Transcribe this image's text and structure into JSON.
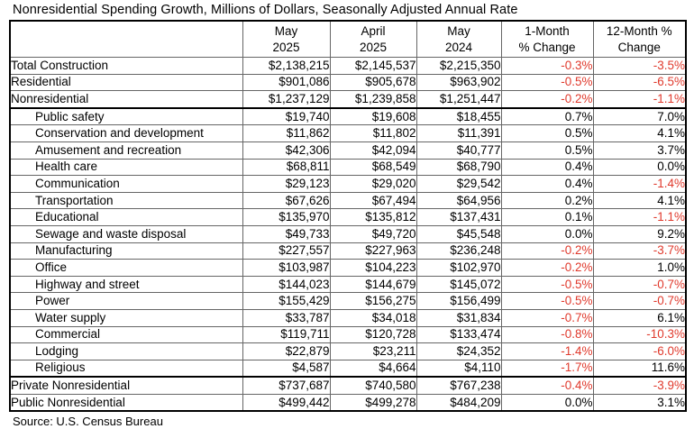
{
  "page_title": "Nonresidential Spending Growth, Millions of Dollars, Seasonally Adjusted Annual Rate",
  "source_note": "Source: U.S. Census Bureau",
  "colors": {
    "negative_value": "#e03a2d",
    "positive_value": "#000000",
    "grid_thin": "#666666",
    "grid_thick": "#000000"
  },
  "table_headers": [
    {
      "line1": "",
      "line2": ""
    },
    {
      "line1": "May",
      "line2": "2025"
    },
    {
      "line1": "April",
      "line2": "2025"
    },
    {
      "line1": "May",
      "line2": "2024"
    },
    {
      "line1": "1-Month",
      "line2": "% Change"
    },
    {
      "line1": "12-Month %",
      "line2": "Change"
    }
  ],
  "chart_data": {
    "type": "table",
    "title": "Nonresidential Spending Growth, Millions of Dollars, Seasonally Adjusted Annual Rate",
    "units": "Millions of Dollars, Seasonally Adjusted Annual Rate",
    "columns": [
      "May 2025",
      "April 2025",
      "May 2024",
      "1-Month % Change",
      "12-Month % Change"
    ],
    "rows": [
      {
        "label": "Total Construction",
        "indent": false,
        "section_end": false,
        "may_2025": 2138215,
        "april_2025": 2145537,
        "may_2024": 2215350,
        "pct_1_month": -0.3,
        "pct_12_month": -3.5
      },
      {
        "label": "Residential",
        "indent": false,
        "section_end": false,
        "may_2025": 901086,
        "april_2025": 905678,
        "may_2024": 963902,
        "pct_1_month": -0.5,
        "pct_12_month": -6.5
      },
      {
        "label": "Nonresidential",
        "indent": false,
        "section_end": true,
        "may_2025": 1237129,
        "april_2025": 1239858,
        "may_2024": 1251447,
        "pct_1_month": -0.2,
        "pct_12_month": -1.1
      },
      {
        "label": "Public safety",
        "indent": true,
        "section_end": false,
        "may_2025": 19740,
        "april_2025": 19608,
        "may_2024": 18455,
        "pct_1_month": 0.7,
        "pct_12_month": 7.0
      },
      {
        "label": "Conservation and development",
        "indent": true,
        "section_end": false,
        "may_2025": 11862,
        "april_2025": 11802,
        "may_2024": 11391,
        "pct_1_month": 0.5,
        "pct_12_month": 4.1
      },
      {
        "label": "Amusement and recreation",
        "indent": true,
        "section_end": false,
        "may_2025": 42306,
        "april_2025": 42094,
        "may_2024": 40777,
        "pct_1_month": 0.5,
        "pct_12_month": 3.7
      },
      {
        "label": "Health care",
        "indent": true,
        "section_end": false,
        "may_2025": 68811,
        "april_2025": 68549,
        "may_2024": 68790,
        "pct_1_month": 0.4,
        "pct_12_month": 0.0
      },
      {
        "label": "Communication",
        "indent": true,
        "section_end": false,
        "may_2025": 29123,
        "april_2025": 29020,
        "may_2024": 29542,
        "pct_1_month": 0.4,
        "pct_12_month": -1.4
      },
      {
        "label": "Transportation",
        "indent": true,
        "section_end": false,
        "may_2025": 67626,
        "april_2025": 67494,
        "may_2024": 64956,
        "pct_1_month": 0.2,
        "pct_12_month": 4.1
      },
      {
        "label": "Educational",
        "indent": true,
        "section_end": false,
        "may_2025": 135970,
        "april_2025": 135812,
        "may_2024": 137431,
        "pct_1_month": 0.1,
        "pct_12_month": -1.1
      },
      {
        "label": "Sewage and waste disposal",
        "indent": true,
        "section_end": false,
        "may_2025": 49733,
        "april_2025": 49720,
        "may_2024": 45548,
        "pct_1_month": 0.0,
        "pct_12_month": 9.2
      },
      {
        "label": "Manufacturing",
        "indent": true,
        "section_end": false,
        "may_2025": 227557,
        "april_2025": 227963,
        "may_2024": 236248,
        "pct_1_month": -0.2,
        "pct_12_month": -3.7
      },
      {
        "label": "Office",
        "indent": true,
        "section_end": false,
        "may_2025": 103987,
        "april_2025": 104223,
        "may_2024": 102970,
        "pct_1_month": -0.2,
        "pct_12_month": 1.0
      },
      {
        "label": "Highway and street",
        "indent": true,
        "section_end": false,
        "may_2025": 144023,
        "april_2025": 144679,
        "may_2024": 145072,
        "pct_1_month": -0.5,
        "pct_12_month": -0.7
      },
      {
        "label": "Power",
        "indent": true,
        "section_end": false,
        "may_2025": 155429,
        "april_2025": 156275,
        "may_2024": 156499,
        "pct_1_month": -0.5,
        "pct_12_month": -0.7
      },
      {
        "label": "Water supply",
        "indent": true,
        "section_end": false,
        "may_2025": 33787,
        "april_2025": 34018,
        "may_2024": 31834,
        "pct_1_month": -0.7,
        "pct_12_month": 6.1
      },
      {
        "label": "Commercial",
        "indent": true,
        "section_end": false,
        "may_2025": 119711,
        "april_2025": 120728,
        "may_2024": 133474,
        "pct_1_month": -0.8,
        "pct_12_month": -10.3
      },
      {
        "label": "Lodging",
        "indent": true,
        "section_end": false,
        "may_2025": 22879,
        "april_2025": 23211,
        "may_2024": 24352,
        "pct_1_month": -1.4,
        "pct_12_month": -6.0
      },
      {
        "label": "Religious",
        "indent": true,
        "section_end": true,
        "may_2025": 4587,
        "april_2025": 4664,
        "may_2024": 4110,
        "pct_1_month": -1.7,
        "pct_12_month": 11.6
      },
      {
        "label": "Private Nonresidential",
        "indent": false,
        "section_end": false,
        "may_2025": 737687,
        "april_2025": 740580,
        "may_2024": 767238,
        "pct_1_month": -0.4,
        "pct_12_month": -3.9
      },
      {
        "label": "Public Nonresidential",
        "indent": false,
        "section_end": false,
        "may_2025": 499442,
        "april_2025": 499278,
        "may_2024": 484209,
        "pct_1_month": 0.0,
        "pct_12_month": 3.1
      }
    ]
  }
}
